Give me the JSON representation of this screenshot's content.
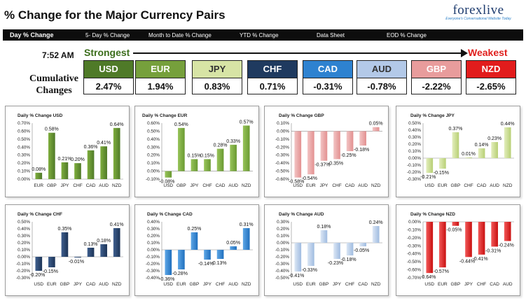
{
  "header": {
    "title": "% Change for the Major Currency Pairs",
    "logo_main": "forexlive",
    "logo_x": "x",
    "logo_sub": "Everyone's Conversational Website Today"
  },
  "nav": {
    "tabs": [
      "Day % Change",
      "5- Day % Change",
      "Month to Date % Change",
      "YTD % Change",
      "Data Sheet",
      "EOD % Change"
    ],
    "active_index": 0
  },
  "time": "7:52 AM",
  "strongest_label": "Strongest",
  "weakest_label": "Weakest",
  "cumulative_label_line1": "Cumulative",
  "cumulative_label_line2": "Changes",
  "currencies": [
    {
      "name": "USD",
      "value": "2.47%",
      "color": "#4f7a28",
      "text_color": "#ffffff"
    },
    {
      "name": "EUR",
      "value": "1.94%",
      "color": "#76a03c",
      "text_color": "#ffffff"
    },
    {
      "name": "JPY",
      "value": "0.83%",
      "color": "#d7e4a5",
      "text_color": "#333333"
    },
    {
      "name": "CHF",
      "value": "0.71%",
      "color": "#1f3a5f",
      "text_color": "#ffffff"
    },
    {
      "name": "CAD",
      "value": "-0.31%",
      "color": "#2e82d0",
      "text_color": "#ffffff"
    },
    {
      "name": "AUD",
      "value": "-0.78%",
      "color": "#b3c9e8",
      "text_color": "#333333"
    },
    {
      "name": "GBP",
      "value": "-2.22%",
      "color": "#e89c9c",
      "text_color": "#ffffff"
    },
    {
      "name": "NZD",
      "value": "-2.65%",
      "color": "#e21c1c",
      "text_color": "#ffffff"
    }
  ],
  "chart_data": [
    {
      "type": "bar",
      "title": "Daily % Change USD",
      "categories": [
        "EUR",
        "GBP",
        "JPY",
        "CHF",
        "CAD",
        "AUD",
        "NZD"
      ],
      "values": [
        0.08,
        0.58,
        0.21,
        0.2,
        0.36,
        0.41,
        0.64
      ],
      "labels": [
        "0.08%",
        "0.58%",
        "0.21%",
        "0.20%",
        "0.36%",
        "0.41%",
        "0.64%"
      ],
      "ylim": [
        0,
        0.7
      ],
      "yticks": [
        "0.00%",
        "0.10%",
        "0.20%",
        "0.30%",
        "0.40%",
        "0.50%",
        "0.60%",
        "0.70%"
      ],
      "ytick_values": [
        0,
        0.1,
        0.2,
        0.3,
        0.4,
        0.5,
        0.6,
        0.7
      ],
      "colors": [
        "#7fae3e",
        "#4f7a28"
      ]
    },
    {
      "type": "bar",
      "title": "Daily % Change EUR",
      "categories": [
        "USD",
        "GBP",
        "JPY",
        "CHF",
        "CAD",
        "AUD",
        "NZD"
      ],
      "values": [
        -0.08,
        0.54,
        0.15,
        0.15,
        0.28,
        0.33,
        0.57
      ],
      "labels": [
        "-0.08%",
        "0.54%",
        "0.15%",
        "0.15%",
        "0.28%",
        "0.33%",
        "0.57%"
      ],
      "ylim": [
        -0.1,
        0.6
      ],
      "yticks": [
        "-0.10%",
        "0.00%",
        "0.10%",
        "0.20%",
        "0.30%",
        "0.40%",
        "0.50%",
        "0.60%"
      ],
      "ytick_values": [
        -0.1,
        0,
        0.1,
        0.2,
        0.3,
        0.4,
        0.5,
        0.6
      ],
      "colors": [
        "#98c45a",
        "#6a9a32"
      ]
    },
    {
      "type": "bar",
      "title": "Daily % Change GBP",
      "categories": [
        "USD",
        "EUR",
        "JPY",
        "CHF",
        "CAD",
        "AUD",
        "NZD"
      ],
      "values": [
        -0.58,
        -0.54,
        -0.37,
        -0.35,
        -0.25,
        -0.18,
        0.05
      ],
      "labels": [
        "-0.58%",
        "-0.54%",
        "-0.37%",
        "-0.35%",
        "-0.25%",
        "-0.18%",
        "0.05%"
      ],
      "ylim": [
        -0.6,
        0.1
      ],
      "yticks": [
        "-0.60%",
        "-0.50%",
        "-0.40%",
        "-0.30%",
        "-0.20%",
        "-0.10%",
        "0.00%",
        "0.10%"
      ],
      "ytick_values": [
        -0.6,
        -0.5,
        -0.4,
        -0.3,
        -0.2,
        -0.1,
        0,
        0.1
      ],
      "colors": [
        "#f2c4c4",
        "#e39090"
      ]
    },
    {
      "type": "bar",
      "title": "Daily % Change JPY",
      "categories": [
        "USD",
        "EUR",
        "GBP",
        "CHF",
        "CAD",
        "AUD",
        "NZD"
      ],
      "values": [
        -0.21,
        -0.15,
        0.37,
        0.01,
        0.14,
        0.23,
        0.44
      ],
      "labels": [
        "-0.21%",
        "-0.15%",
        "0.37%",
        "0.01%",
        "0.14%",
        "0.23%",
        "0.44%"
      ],
      "ylim": [
        -0.3,
        0.5
      ],
      "yticks": [
        "-0.30%",
        "-0.20%",
        "-0.10%",
        "0.00%",
        "0.10%",
        "0.20%",
        "0.30%",
        "0.40%",
        "0.50%"
      ],
      "ytick_values": [
        -0.3,
        -0.2,
        -0.1,
        0,
        0.1,
        0.2,
        0.3,
        0.4,
        0.5
      ],
      "colors": [
        "#e3eebd",
        "#b7cf74"
      ]
    },
    {
      "type": "bar",
      "title": "Daily % Change CHF",
      "categories": [
        "USD",
        "EUR",
        "GBP",
        "JPY",
        "CAD",
        "AUD",
        "NZD"
      ],
      "values": [
        -0.2,
        -0.15,
        0.35,
        -0.01,
        0.13,
        0.18,
        0.41
      ],
      "labels": [
        "-0.20%",
        "-0.15%",
        "0.35%",
        "-0.01%",
        "0.13%",
        "0.18%",
        "0.41%"
      ],
      "ylim": [
        -0.3,
        0.5
      ],
      "yticks": [
        "-0.30%",
        "-0.20%",
        "-0.10%",
        "0.00%",
        "0.10%",
        "0.20%",
        "0.30%",
        "0.40%",
        "0.50%"
      ],
      "ytick_values": [
        -0.3,
        -0.2,
        -0.1,
        0,
        0.1,
        0.2,
        0.3,
        0.4,
        0.5
      ],
      "colors": [
        "#3f5f8e",
        "#1c3457"
      ]
    },
    {
      "type": "bar",
      "title": "Daily % Change CAD",
      "categories": [
        "USD",
        "EUR",
        "GBP",
        "JPY",
        "CHF",
        "AUD",
        "NZD"
      ],
      "values": [
        -0.36,
        -0.28,
        0.25,
        -0.14,
        -0.13,
        0.05,
        0.31
      ],
      "labels": [
        "-0.36%",
        "-0.28%",
        "0.25%",
        "-0.14%",
        "-0.13%",
        "0.05%",
        "0.31%"
      ],
      "ylim": [
        -0.4,
        0.4
      ],
      "yticks": [
        "-0.40%",
        "-0.30%",
        "-0.20%",
        "-0.10%",
        "0.00%",
        "0.10%",
        "0.20%",
        "0.30%",
        "0.40%"
      ],
      "ytick_values": [
        -0.4,
        -0.3,
        -0.2,
        -0.1,
        0,
        0.1,
        0.2,
        0.3,
        0.4
      ],
      "colors": [
        "#5ea7e6",
        "#1f6fbe"
      ]
    },
    {
      "type": "bar",
      "title": "Daily % Change AUD",
      "categories": [
        "USD",
        "EUR",
        "GBP",
        "JPY",
        "CHF",
        "CAD",
        "NZD"
      ],
      "values": [
        -0.41,
        -0.33,
        0.18,
        -0.23,
        -0.18,
        -0.05,
        0.24
      ],
      "labels": [
        "-0.41%",
        "-0.33%",
        "0.18%",
        "-0.23%",
        "-0.18%",
        "-0.05%",
        "0.24%"
      ],
      "ylim": [
        -0.5,
        0.3
      ],
      "yticks": [
        "-0.50%",
        "-0.40%",
        "-0.30%",
        "-0.20%",
        "-0.10%",
        "0.00%",
        "0.10%",
        "0.20%",
        "0.30%"
      ],
      "ytick_values": [
        -0.5,
        -0.4,
        -0.3,
        -0.2,
        -0.1,
        0,
        0.1,
        0.2,
        0.3
      ],
      "colors": [
        "#dce7f5",
        "#9fbbe0"
      ]
    },
    {
      "type": "bar",
      "title": "Daily % Change NZD",
      "categories": [
        "USD",
        "EUR",
        "GBP",
        "JPY",
        "CHF",
        "CAD",
        "AUD"
      ],
      "values": [
        -0.64,
        -0.57,
        -0.05,
        -0.44,
        -0.41,
        -0.31,
        -0.24
      ],
      "labels": [
        "-0.64%",
        "-0.57%",
        "-0.05%",
        "-0.44%",
        "-0.41%",
        "-0.31%",
        "-0.24%"
      ],
      "ylim": [
        -0.7,
        0.0
      ],
      "yticks": [
        "-0.70%",
        "-0.60%",
        "-0.50%",
        "-0.40%",
        "-0.30%",
        "-0.20%",
        "-0.10%",
        "0.00%"
      ],
      "ytick_values": [
        -0.7,
        -0.6,
        -0.5,
        -0.4,
        -0.3,
        -0.2,
        -0.1,
        0
      ],
      "colors": [
        "#f25a5a",
        "#c90f0f"
      ]
    }
  ]
}
